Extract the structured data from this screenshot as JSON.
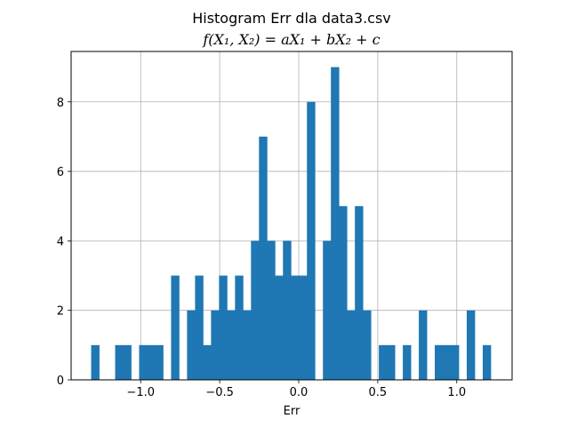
{
  "chart_data": {
    "type": "bar",
    "title": "Histogram Err dla data3.csv",
    "subtitle": "f(X₁, X₂) = aX₁ + bX₂ + c",
    "xlabel": "Err",
    "ylabel": "",
    "xlim": [
      -1.44,
      1.35
    ],
    "ylim": [
      0,
      9.45
    ],
    "grid": true,
    "bar_color": "#1f77b4",
    "x_ticks": [
      -1.0,
      -0.5,
      0.0,
      0.5,
      1.0
    ],
    "x_tick_labels": [
      "−1.0",
      "−0.5",
      "0.0",
      "0.5",
      "1.0"
    ],
    "y_ticks": [
      0,
      2,
      4,
      6,
      8
    ],
    "y_tick_labels": [
      "0",
      "2",
      "4",
      "6",
      "8"
    ],
    "bin_start": -1.3132,
    "bin_width": 0.05056,
    "counts": [
      1,
      0,
      0,
      1,
      1,
      0,
      1,
      1,
      1,
      0,
      3,
      0,
      2,
      3,
      1,
      2,
      3,
      2,
      3,
      2,
      4,
      7,
      4,
      3,
      4,
      3,
      3,
      8,
      0,
      4,
      9,
      5,
      2,
      5,
      2,
      0,
      1,
      1,
      0,
      1,
      0,
      2,
      0,
      1,
      1,
      1,
      0,
      2,
      0,
      1
    ]
  }
}
